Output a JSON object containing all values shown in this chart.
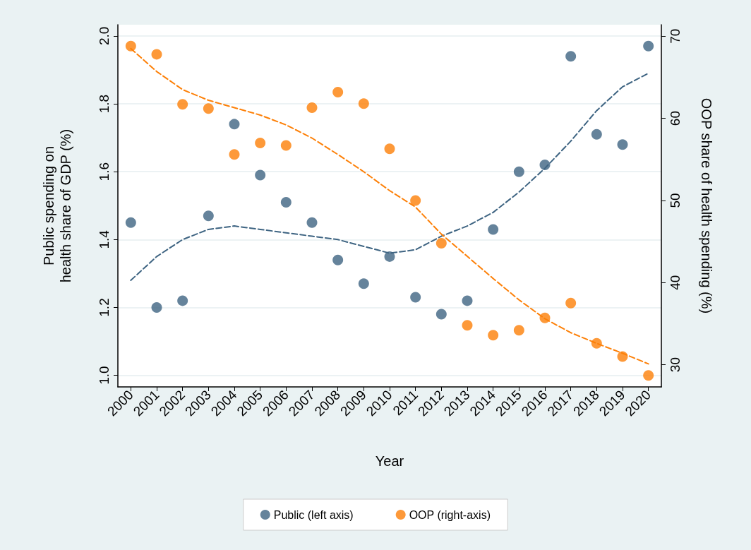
{
  "chart_data": {
    "type": "scatter",
    "xlabel": "Year",
    "ylabel": "Public spending on health share of GDP (%)",
    "y2label": "OOP share of health spending (%)",
    "categories": [
      "2000",
      "2001",
      "2002",
      "2003",
      "2004",
      "2005",
      "2006",
      "2007",
      "2008",
      "2009",
      "2010",
      "2011",
      "2012",
      "2013",
      "2014",
      "2015",
      "2016",
      "2017",
      "2018",
      "2019",
      "2020"
    ],
    "series": [
      {
        "name": "Public (left axis)",
        "color": "#3e6482",
        "axis": "y",
        "values": [
          1.45,
          1.2,
          1.22,
          1.47,
          1.74,
          1.59,
          1.51,
          1.45,
          1.34,
          1.27,
          1.35,
          1.23,
          1.18,
          1.22,
          1.43,
          1.6,
          1.62,
          1.94,
          1.71,
          1.68,
          1.97
        ]
      },
      {
        "name": "OOP (right-axis)",
        "color": "#fd8008",
        "axis": "y2",
        "values": [
          68.8,
          67.8,
          61.7,
          61.2,
          55.6,
          57.0,
          56.7,
          61.3,
          63.2,
          61.8,
          56.3,
          50.0,
          44.8,
          34.8,
          33.6,
          34.2,
          35.7,
          37.5,
          32.6,
          31.0,
          28.7
        ]
      },
      {
        "color": "#3e6482",
        "type": "line",
        "axis": "y",
        "line_style": "dashed",
        "marker": "none",
        "values": [
          1.28,
          1.35,
          1.4,
          1.43,
          1.44,
          1.43,
          1.42,
          1.41,
          1.4,
          1.38,
          1.36,
          1.37,
          1.41,
          1.44,
          1.48,
          1.54,
          1.61,
          1.69,
          1.78,
          1.85,
          1.89
        ]
      },
      {
        "color": "#fd8008",
        "type": "line",
        "axis": "y2",
        "line_style": "dashed",
        "marker": "none",
        "values": [
          68.5,
          65.7,
          63.5,
          62.2,
          61.3,
          60.4,
          59.2,
          57.6,
          55.6,
          53.5,
          51.2,
          49.2,
          45.9,
          43.2,
          40.5,
          37.9,
          35.6,
          33.9,
          32.6,
          31.4,
          30.1
        ]
      }
    ],
    "ylim": [
      0.966,
      2.033
    ],
    "yticks": [
      {
        "value": 1,
        "label": "1.0"
      },
      1.2,
      1.4,
      1.6,
      1.8,
      {
        "value": 2,
        "label": "2.0"
      }
    ],
    "y2lim": [
      27.3,
      71.4
    ],
    "y2ticks": [
      30,
      40,
      50,
      60,
      70
    ],
    "grid": "y",
    "legend": "bottom",
    "marker": "circle"
  }
}
